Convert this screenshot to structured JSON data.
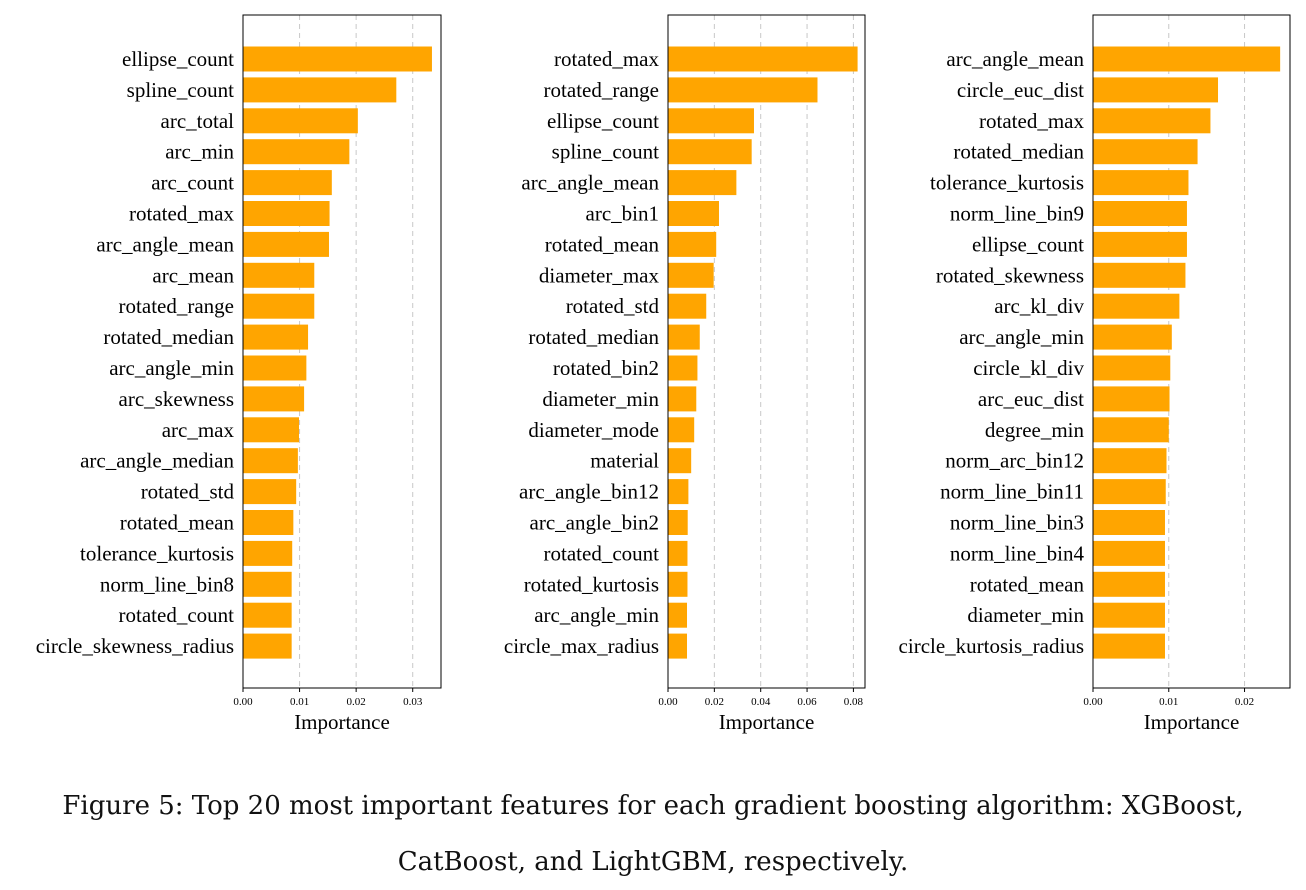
{
  "chart_data": [
    {
      "type": "bar",
      "orientation": "horizontal",
      "xlabel": "Importance",
      "xlim": [
        0,
        0.035
      ],
      "xticks": [
        "0.00",
        "0.01",
        "0.02",
        "0.03"
      ],
      "tick_values": [
        0,
        0.01,
        0.02,
        0.03
      ],
      "grid": "vertical-dashed",
      "categories": [
        "ellipse_count",
        "spline_count",
        "arc_total",
        "arc_min",
        "arc_count",
        "rotated_max",
        "arc_angle_mean",
        "arc_mean",
        "rotated_range",
        "rotated_median",
        "arc_angle_min",
        "arc_skewness",
        "arc_max",
        "arc_angle_median",
        "rotated_std",
        "rotated_mean",
        "tolerance_kurtosis",
        "norm_line_bin8",
        "rotated_count",
        "circle_skewness_radius"
      ],
      "values": [
        0.0334,
        0.0271,
        0.0203,
        0.0188,
        0.0157,
        0.0153,
        0.0152,
        0.0126,
        0.0126,
        0.0115,
        0.0112,
        0.0108,
        0.0099,
        0.0097,
        0.0094,
        0.0089,
        0.0087,
        0.0086,
        0.0086,
        0.0086
      ],
      "bar_color": "#ffa500"
    },
    {
      "type": "bar",
      "orientation": "horizontal",
      "xlabel": "Importance",
      "xlim": [
        0,
        0.085
      ],
      "xticks": [
        "0.00",
        "0.02",
        "0.04",
        "0.06",
        "0.08"
      ],
      "tick_values": [
        0,
        0.02,
        0.04,
        0.06,
        0.08
      ],
      "grid": "vertical-dashed",
      "categories": [
        "rotated_max",
        "rotated_range",
        "ellipse_count",
        "spline_count",
        "arc_angle_mean",
        "arc_bin1",
        "rotated_mean",
        "diameter_max",
        "rotated_std",
        "rotated_median",
        "rotated_bin2",
        "diameter_min",
        "diameter_mode",
        "material",
        "arc_angle_bin12",
        "arc_angle_bin2",
        "rotated_count",
        "rotated_kurtosis",
        "arc_angle_min",
        "circle_max_radius"
      ],
      "values": [
        0.0818,
        0.0645,
        0.0371,
        0.0361,
        0.0295,
        0.022,
        0.0208,
        0.0197,
        0.0165,
        0.0137,
        0.0127,
        0.0122,
        0.0113,
        0.01,
        0.0088,
        0.0085,
        0.0084,
        0.0084,
        0.0082,
        0.0082
      ],
      "bar_color": "#ffa500"
    },
    {
      "type": "bar",
      "orientation": "horizontal",
      "xlabel": "Importance",
      "xlim": [
        0,
        0.026
      ],
      "xticks": [
        "0.00",
        "0.01",
        "0.02"
      ],
      "tick_values": [
        0,
        0.01,
        0.02
      ],
      "grid": "vertical-dashed",
      "categories": [
        "arc_angle_mean",
        "circle_euc_dist",
        "rotated_max",
        "rotated_median",
        "tolerance_kurtosis",
        "norm_line_bin9",
        "ellipse_count",
        "rotated_skewness",
        "arc_kl_div",
        "arc_angle_min",
        "circle_kl_div",
        "arc_euc_dist",
        "degree_min",
        "norm_arc_bin12",
        "norm_line_bin11",
        "norm_line_bin3",
        "norm_line_bin4",
        "rotated_mean",
        "diameter_min",
        "circle_kurtosis_radius"
      ],
      "values": [
        0.0247,
        0.0165,
        0.0155,
        0.0138,
        0.0126,
        0.0124,
        0.0124,
        0.0122,
        0.0114,
        0.0104,
        0.0102,
        0.0101,
        0.01,
        0.0097,
        0.0096,
        0.0095,
        0.0095,
        0.0095,
        0.0095,
        0.0095
      ],
      "bar_color": "#ffa500"
    }
  ],
  "caption": {
    "line1": "Figure 5: Top 20 most important features for each gradient boosting algorithm: XGBoost,",
    "line2": "CatBoost, and LightGBM, respectively."
  }
}
